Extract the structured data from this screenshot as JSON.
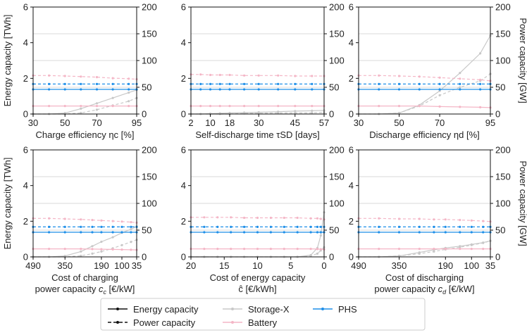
{
  "axis_labels": {
    "energy": "Energy capacity [TWh]",
    "power": "Power capacity [GW]"
  },
  "legend": {
    "entries": [
      {
        "label": "Energy capacity",
        "style": "solid-black"
      },
      {
        "label": "Power capacity",
        "style": "dashed-black"
      },
      {
        "label": "Storage-X",
        "color": "#c8c8c8"
      },
      {
        "label": "Battery",
        "color": "#f4b6c6"
      },
      {
        "label": "PHS",
        "color": "#1f8fe8"
      }
    ]
  },
  "colors": {
    "storage_x": "#c8c8c8",
    "battery": "#f4b6c6",
    "phs": "#1f8fe8",
    "grid": "#d9d9d9"
  },
  "chart_data": [
    {
      "type": "line",
      "xlabel": [
        "Charge efficiency ηc [%]"
      ],
      "xlim": [
        30,
        95
      ],
      "xticks": [
        30,
        50,
        70,
        95
      ],
      "ylim_energy": [
        0,
        6
      ],
      "yticks_energy": [
        0,
        2,
        4,
        6
      ],
      "ylim_power": [
        0,
        200
      ],
      "yticks_power": [
        0,
        50,
        100,
        150,
        200
      ],
      "x": [
        30,
        40,
        50,
        60,
        70,
        80,
        90,
        95
      ],
      "series": [
        {
          "name": "Storage-X",
          "metric": "energy",
          "values": [
            0,
            0,
            0.05,
            0.3,
            0.6,
            0.9,
            1.2,
            1.35
          ]
        },
        {
          "name": "Storage-X",
          "metric": "power",
          "values": [
            0,
            0,
            0,
            2,
            8,
            16,
            24,
            30
          ]
        },
        {
          "name": "Battery",
          "metric": "energy",
          "values": [
            0.45,
            0.45,
            0.45,
            0.45,
            0.45,
            0.45,
            0.45,
            0.45
          ]
        },
        {
          "name": "Battery",
          "metric": "power",
          "values": [
            72,
            72,
            71,
            70,
            69,
            67,
            66,
            65
          ]
        },
        {
          "name": "PHS",
          "metric": "energy",
          "values": [
            1.38,
            1.38,
            1.38,
            1.38,
            1.38,
            1.38,
            1.38,
            1.38
          ]
        },
        {
          "name": "PHS",
          "metric": "power",
          "values": [
            56,
            56,
            56,
            56,
            56,
            56,
            56,
            56
          ]
        }
      ]
    },
    {
      "type": "line",
      "xlabel": [
        "Self-discharge time τSD [days]"
      ],
      "xlim": [
        2,
        57
      ],
      "xticks": [
        2,
        10,
        18,
        30,
        45,
        57
      ],
      "ylim_energy": [
        0,
        6
      ],
      "yticks_energy": [
        0,
        2,
        4,
        6
      ],
      "ylim_power": [
        0,
        200
      ],
      "yticks_power": [
        0,
        50,
        100,
        150,
        200
      ],
      "x": [
        2,
        6,
        10,
        14,
        18,
        24,
        30,
        38,
        45,
        52,
        57
      ],
      "series": [
        {
          "name": "Storage-X",
          "metric": "energy",
          "values": [
            0,
            0,
            0.02,
            0.04,
            0.06,
            0.08,
            0.1,
            0.13,
            0.16,
            0.18,
            0.2
          ]
        },
        {
          "name": "Storage-X",
          "metric": "power",
          "values": [
            0,
            0,
            0,
            0,
            0,
            1,
            1,
            2,
            2,
            2,
            3
          ]
        },
        {
          "name": "Battery",
          "metric": "energy",
          "values": [
            0.45,
            0.45,
            0.45,
            0.45,
            0.45,
            0.45,
            0.45,
            0.45,
            0.45,
            0.45,
            0.45
          ]
        },
        {
          "name": "Battery",
          "metric": "power",
          "values": [
            74,
            74,
            73,
            73,
            73,
            72,
            72,
            72,
            71,
            71,
            71
          ]
        },
        {
          "name": "PHS",
          "metric": "energy",
          "values": [
            1.38,
            1.38,
            1.38,
            1.38,
            1.38,
            1.38,
            1.38,
            1.38,
            1.38,
            1.38,
            1.38
          ]
        },
        {
          "name": "PHS",
          "metric": "power",
          "values": [
            56,
            56,
            56,
            56,
            56,
            56,
            56,
            56,
            56,
            56,
            56
          ]
        }
      ]
    },
    {
      "type": "line",
      "xlabel": [
        "Discharge efficiency ηd [%]"
      ],
      "xlim": [
        30,
        95
      ],
      "xticks": [
        30,
        50,
        70,
        95
      ],
      "ylim_energy": [
        0,
        6
      ],
      "yticks_energy": [
        0,
        2,
        4,
        6
      ],
      "ylim_power": [
        0,
        200
      ],
      "yticks_power": [
        0,
        50,
        100,
        150,
        200
      ],
      "x": [
        30,
        40,
        50,
        60,
        70,
        80,
        90,
        95
      ],
      "series": [
        {
          "name": "Storage-X",
          "metric": "energy",
          "values": [
            0,
            0,
            0.05,
            0.5,
            1.3,
            2.3,
            3.4,
            4.4
          ]
        },
        {
          "name": "Storage-X",
          "metric": "power",
          "values": [
            0,
            0,
            2,
            15,
            35,
            50,
            62,
            75
          ]
        },
        {
          "name": "Battery",
          "metric": "energy",
          "values": [
            0.45,
            0.45,
            0.45,
            0.45,
            0.42,
            0.4,
            0.38,
            0.36
          ]
        },
        {
          "name": "Battery",
          "metric": "power",
          "values": [
            72,
            72,
            71,
            70,
            68,
            66,
            64,
            62
          ]
        },
        {
          "name": "PHS",
          "metric": "energy",
          "values": [
            1.38,
            1.38,
            1.38,
            1.38,
            1.38,
            1.38,
            1.38,
            1.38
          ]
        },
        {
          "name": "PHS",
          "metric": "power",
          "values": [
            56,
            56,
            56,
            56,
            56,
            56,
            56,
            56
          ]
        }
      ]
    },
    {
      "type": "line",
      "xlabel": [
        "Cost of charging",
        "power capacity cc [€/kW]"
      ],
      "xlim": [
        490,
        35
      ],
      "xticks": [
        490,
        350,
        190,
        100,
        35
      ],
      "ylim_energy": [
        0,
        6
      ],
      "yticks_energy": [
        0,
        2,
        4,
        6
      ],
      "ylim_power": [
        0,
        200
      ],
      "yticks_power": [
        0,
        50,
        100,
        150,
        200
      ],
      "x": [
        490,
        420,
        350,
        280,
        230,
        190,
        140,
        100,
        60,
        35
      ],
      "series": [
        {
          "name": "Storage-X",
          "metric": "energy",
          "values": [
            0,
            0,
            0.05,
            0.3,
            0.6,
            0.85,
            1.1,
            1.35,
            1.55,
            1.7
          ]
        },
        {
          "name": "Storage-X",
          "metric": "power",
          "values": [
            0,
            0,
            0,
            2,
            6,
            10,
            16,
            22,
            28,
            32
          ]
        },
        {
          "name": "Battery",
          "metric": "energy",
          "values": [
            0.45,
            0.45,
            0.45,
            0.45,
            0.44,
            0.43,
            0.42,
            0.41,
            0.4,
            0.39
          ]
        },
        {
          "name": "Battery",
          "metric": "power",
          "values": [
            72,
            72,
            71,
            70,
            69,
            68,
            67,
            66,
            65,
            64
          ]
        },
        {
          "name": "PHS",
          "metric": "energy",
          "values": [
            1.38,
            1.38,
            1.38,
            1.38,
            1.38,
            1.38,
            1.38,
            1.38,
            1.38,
            1.38
          ]
        },
        {
          "name": "PHS",
          "metric": "power",
          "values": [
            56,
            56,
            56,
            56,
            56,
            56,
            56,
            56,
            56,
            56
          ]
        }
      ]
    },
    {
      "type": "line",
      "xlabel": [
        "Cost of energy capacity",
        "ĉ [€/kWh]"
      ],
      "xlim": [
        20,
        0
      ],
      "xticks": [
        20,
        15,
        10,
        5,
        0
      ],
      "ylim_energy": [
        0,
        6
      ],
      "yticks_energy": [
        0,
        2,
        4,
        6
      ],
      "ylim_power": [
        0,
        200
      ],
      "yticks_power": [
        0,
        50,
        100,
        150,
        200
      ],
      "x": [
        20,
        18,
        16,
        14,
        12,
        10,
        8,
        6,
        4,
        2,
        1,
        0.5,
        0
      ],
      "series": [
        {
          "name": "Storage-X",
          "metric": "energy",
          "values": [
            0,
            0,
            0,
            0,
            0,
            0,
            0,
            0,
            0,
            0.1,
            0.5,
            1.2,
            2.5
          ]
        },
        {
          "name": "Storage-X",
          "metric": "power",
          "values": [
            0,
            0,
            0,
            0,
            0,
            0,
            0,
            0,
            0,
            2,
            6,
            12,
            18
          ]
        },
        {
          "name": "Battery",
          "metric": "energy",
          "values": [
            0.45,
            0.45,
            0.45,
            0.45,
            0.45,
            0.45,
            0.45,
            0.45,
            0.45,
            0.45,
            0.44,
            0.43,
            0.42
          ]
        },
        {
          "name": "Battery",
          "metric": "power",
          "values": [
            74,
            74,
            74,
            74,
            73,
            73,
            73,
            73,
            73,
            72,
            72,
            71,
            70
          ]
        },
        {
          "name": "PHS",
          "metric": "energy",
          "values": [
            1.38,
            1.38,
            1.38,
            1.38,
            1.38,
            1.38,
            1.38,
            1.38,
            1.38,
            1.38,
            1.38,
            1.38,
            1.38
          ]
        },
        {
          "name": "PHS",
          "metric": "power",
          "values": [
            56,
            56,
            56,
            56,
            56,
            56,
            56,
            56,
            56,
            56,
            56,
            56,
            56
          ]
        }
      ]
    },
    {
      "type": "line",
      "xlabel": [
        "Cost of discharging",
        "power capacity cd [€/kW]"
      ],
      "xlim": [
        490,
        35
      ],
      "xticks": [
        490,
        350,
        190,
        100,
        35
      ],
      "ylim_energy": [
        0,
        6
      ],
      "yticks_energy": [
        0,
        2,
        4,
        6
      ],
      "ylim_power": [
        0,
        200
      ],
      "yticks_power": [
        0,
        50,
        100,
        150,
        200
      ],
      "x": [
        490,
        420,
        350,
        280,
        230,
        190,
        140,
        100,
        60,
        35
      ],
      "series": [
        {
          "name": "Storage-X",
          "metric": "energy",
          "values": [
            0,
            0,
            0.05,
            0.25,
            0.4,
            0.5,
            0.6,
            0.7,
            0.8,
            0.9
          ]
        },
        {
          "name": "Storage-X",
          "metric": "power",
          "values": [
            0,
            0,
            2,
            6,
            10,
            14,
            18,
            22,
            26,
            30
          ]
        },
        {
          "name": "Battery",
          "metric": "energy",
          "values": [
            0.45,
            0.45,
            0.45,
            0.45,
            0.45,
            0.45,
            0.45,
            0.45,
            0.45,
            0.45
          ]
        },
        {
          "name": "Battery",
          "metric": "power",
          "values": [
            72,
            72,
            71,
            71,
            70,
            70,
            69,
            68,
            67,
            66
          ]
        },
        {
          "name": "PHS",
          "metric": "energy",
          "values": [
            1.38,
            1.38,
            1.38,
            1.38,
            1.38,
            1.38,
            1.38,
            1.38,
            1.38,
            1.38
          ]
        },
        {
          "name": "PHS",
          "metric": "power",
          "values": [
            56,
            56,
            56,
            56,
            56,
            56,
            56,
            56,
            56,
            56
          ]
        }
      ]
    }
  ]
}
